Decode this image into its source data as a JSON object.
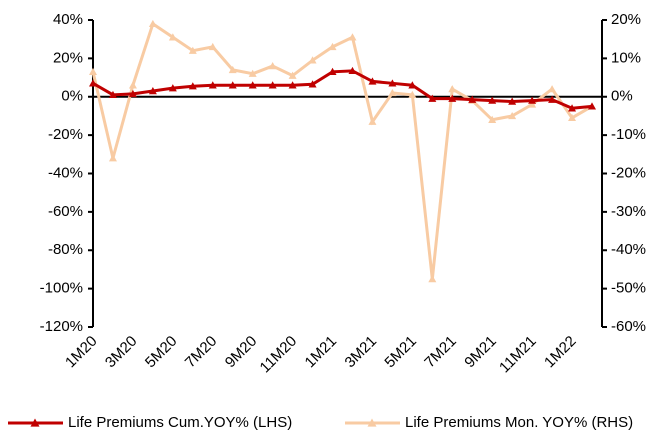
{
  "chart_data": {
    "type": "line",
    "categories": [
      "1M20",
      null,
      "3M20",
      null,
      "5M20",
      null,
      "7M20",
      null,
      "9M20",
      null,
      "11M20",
      null,
      "1M21",
      null,
      "3M21",
      null,
      "5M21",
      null,
      "7M21",
      null,
      "9M21",
      null,
      "11M21",
      null,
      "1M22",
      null
    ],
    "series": [
      {
        "name": "Life Premiums Cum.YOY% (LHS)",
        "color": "#c00000",
        "marker": "triangle",
        "values": [
          7,
          1,
          1.5,
          3,
          4.5,
          5.5,
          6,
          6,
          6,
          6,
          6,
          6.5,
          13,
          13.5,
          8,
          7,
          6,
          -1,
          -1,
          -1.5,
          -2,
          -2.5,
          -2,
          -1.5,
          -6,
          -5
        ]
      },
      {
        "name": "Life Premiums Mon. YOY% (RHS)",
        "color": "#f8cba3",
        "marker": "triangle",
        "axis": "y2",
        "values": [
          6.5,
          -16,
          3,
          19,
          15.5,
          12,
          13,
          7,
          6,
          8,
          5.5,
          9.5,
          13,
          15.5,
          -6.5,
          1,
          0.5,
          -47.5,
          2,
          -1,
          -6,
          -5,
          -2,
          2,
          -5.5,
          -2.5
        ]
      }
    ],
    "ylim": [
      -120,
      40
    ],
    "yticks": [
      {
        "value": -120,
        "label": "-120%"
      },
      {
        "value": -100,
        "label": "-100%"
      },
      {
        "value": -80,
        "label": "-80%"
      },
      {
        "value": -60,
        "label": "-60%"
      },
      {
        "value": -40,
        "label": "-40%"
      },
      {
        "value": -20,
        "label": "-20%"
      },
      {
        "value": 0,
        "label": "0%"
      },
      {
        "value": 20,
        "label": "20%"
      },
      {
        "value": 40,
        "label": "40%"
      }
    ],
    "y2lim": [
      -60,
      20
    ],
    "y2ticks": [
      {
        "value": -60,
        "label": "-60%"
      },
      {
        "value": -50,
        "label": "-50%"
      },
      {
        "value": -40,
        "label": "-40%"
      },
      {
        "value": -30,
        "label": "-30%"
      },
      {
        "value": -20,
        "label": "-20%"
      },
      {
        "value": -10,
        "label": "-10%"
      },
      {
        "value": 0,
        "label": "0%"
      },
      {
        "value": 10,
        "label": "10%"
      },
      {
        "value": 20,
        "label": "20%"
      }
    ],
    "grid": false,
    "legend": "bottom"
  }
}
